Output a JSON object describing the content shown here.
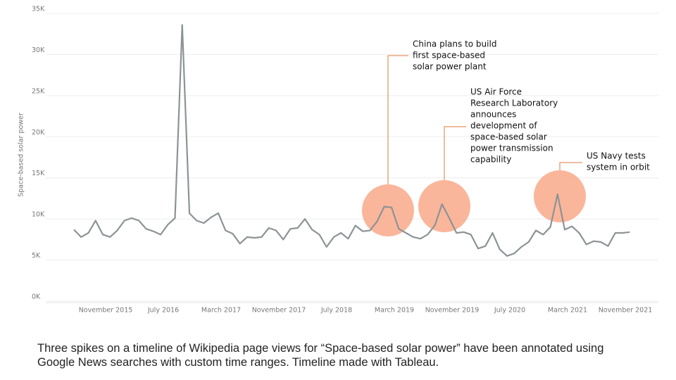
{
  "chart_data": {
    "type": "line",
    "y_label": "Space-based solar power",
    "caption": "Three spikes on a timeline of Wikipedia page views for “Space-based solar power” have been annotated using Google News searches with custom time ranges. Timeline made with Tableau.",
    "color": "#8c9396",
    "grid": true,
    "ylim": [
      0,
      35000
    ],
    "yticks": [
      {
        "value": 0,
        "label": "0K"
      },
      {
        "value": 5000,
        "label": "5K"
      },
      {
        "value": 10000,
        "label": "10K"
      },
      {
        "value": 15000,
        "label": "15K"
      },
      {
        "value": 20000,
        "label": "20K"
      },
      {
        "value": 25000,
        "label": "25K"
      },
      {
        "value": 30000,
        "label": "30K"
      },
      {
        "value": 35000,
        "label": "35K"
      }
    ],
    "categories": [
      null,
      null,
      null,
      null,
      "November 2015",
      null,
      null,
      null,
      null,
      null,
      null,
      null,
      "July 2016",
      null,
      null,
      null,
      null,
      null,
      null,
      null,
      "March 2017",
      null,
      null,
      null,
      null,
      null,
      null,
      null,
      "November 2017",
      null,
      null,
      null,
      null,
      null,
      null,
      null,
      "July 2018",
      null,
      null,
      null,
      null,
      null,
      null,
      null,
      "March 2019",
      null,
      null,
      null,
      null,
      null,
      null,
      null,
      "November 2019",
      null,
      null,
      null,
      null,
      null,
      null,
      null,
      "July 2020",
      null,
      null,
      null,
      null,
      null,
      null,
      null,
      "March 2021",
      null,
      null,
      null,
      null,
      null,
      null,
      null,
      "November 2021",
      null
    ],
    "values": [
      8700,
      7800,
      8300,
      9800,
      8100,
      7800,
      8600,
      9800,
      10100,
      9800,
      8800,
      8500,
      8100,
      9300,
      10100,
      33600,
      10700,
      9800,
      9500,
      10200,
      10700,
      8600,
      8200,
      7000,
      7800,
      7700,
      7800,
      8900,
      8600,
      7500,
      8800,
      8900,
      10000,
      8700,
      8100,
      6600,
      7800,
      8300,
      7600,
      9200,
      8500,
      8600,
      9700,
      11500,
      11400,
      8800,
      8300,
      7800,
      7600,
      8100,
      9200,
      11800,
      10100,
      8300,
      8400,
      8100,
      6400,
      6700,
      8300,
      6300,
      5500,
      5800,
      6600,
      7200,
      8600,
      8100,
      9000,
      13000,
      8700,
      9100,
      8300,
      6900,
      7300,
      7200,
      6700,
      8300,
      8300,
      8400
    ],
    "annotations": [
      {
        "lines": [
          "China plans to build",
          "first space-based",
          "solar power plant"
        ]
      },
      {
        "lines": [
          "US Air Force",
          "Research Laboratory",
          "announces",
          "development of",
          "space-based solar",
          "power transmission",
          "capability"
        ]
      },
      {
        "lines": [
          "US Navy tests",
          "system in orbit"
        ]
      }
    ]
  }
}
